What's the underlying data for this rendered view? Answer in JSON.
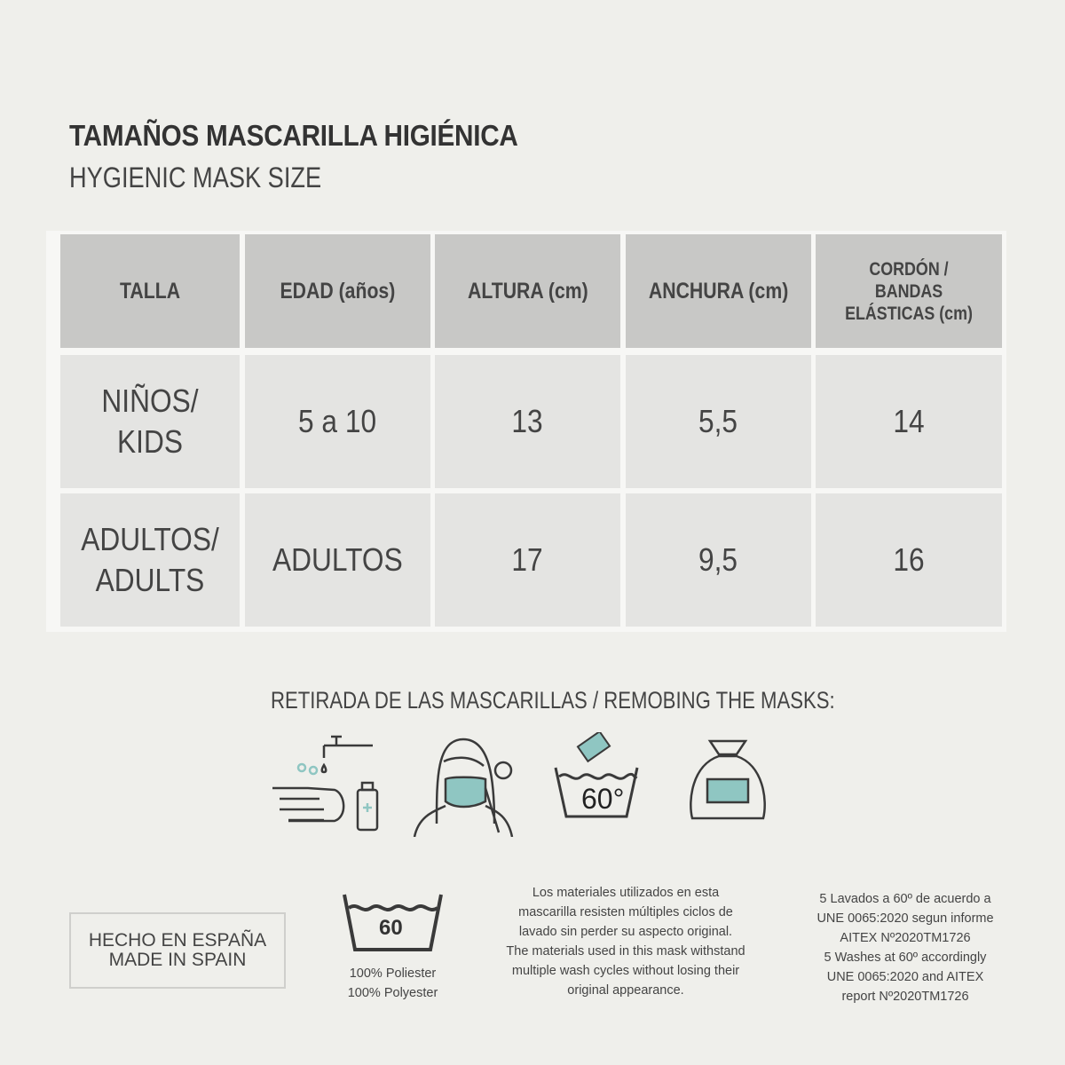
{
  "title": "TAMAÑOS MASCARILLA HIGIÉNICA",
  "subtitle": "HYGIENIC MASK SIZE",
  "table": {
    "headers": [
      "TALLA",
      "EDAD (años)",
      "ALTURA (cm)",
      "ANCHURA (cm)",
      "CORDÓN / BANDAS ELÁSTICAS (cm)"
    ],
    "rows": [
      [
        "NIÑOS/ KIDS",
        "5 a 10",
        "13",
        "5,5",
        "14"
      ],
      [
        "ADULTOS/ ADULTS",
        "ADULTOS",
        "17",
        "9,5",
        "16"
      ]
    ]
  },
  "removal": {
    "heading": "RETIRADA DE LAS MASCARILLAS / REMOBING THE MASKS:",
    "icons": [
      "hand-washing-icon",
      "person-removing-mask-icon",
      "wash-60-degrees-icon",
      "sealed-bag-icon"
    ],
    "wash_label": "60°"
  },
  "footer": {
    "made_in": [
      "HECHO EN ESPAÑA",
      "MADE IN SPAIN"
    ],
    "wash_symbol_label": "60",
    "composition": [
      "100% Poliester",
      "100% Polyester"
    ],
    "materials_es": [
      "Los materiales utilizados en esta",
      "mascarilla resisten múltiples ciclos de",
      "lavado sin perder su aspecto original."
    ],
    "materials_en": [
      "The materials used in this mask withstand",
      "multiple wash cycles without losing their",
      "original appearance."
    ],
    "washes_es": [
      "5 Lavados a 60º de acuerdo a",
      "UNE 0065:2020 segun informe",
      "AITEX Nº2020TM1726"
    ],
    "washes_en": [
      "5 Washes at 60º accordingly",
      "UNE 0065:2020 and AITEX",
      "report Nº2020TM1726"
    ]
  },
  "colors": {
    "accent": "#8fc6c2",
    "header": "#c8c8c6",
    "body": "#e4e4e2",
    "background": "#efefeb"
  }
}
